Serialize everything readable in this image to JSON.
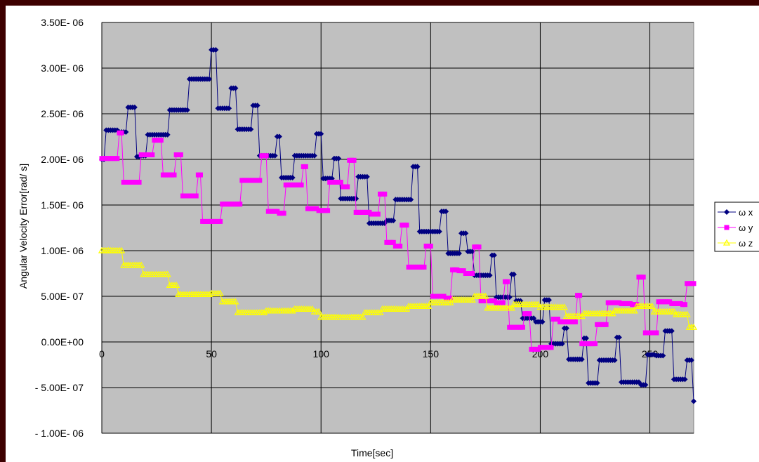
{
  "chart_data": {
    "type": "line",
    "title": "",
    "xlabel": "Time[sec]",
    "ylabel": "Angular Velocity Error[rad/ s]",
    "xlim": [
      0,
      270
    ],
    "ylim": [
      -1e-06,
      3.5e-06
    ],
    "x_ticks": [
      {
        "value": 0,
        "label": "0"
      },
      {
        "value": 50,
        "label": "50"
      },
      {
        "value": 100,
        "label": "100"
      },
      {
        "value": 150,
        "label": "150"
      },
      {
        "value": 200,
        "label": "200"
      },
      {
        "value": 250,
        "label": "250"
      }
    ],
    "y_ticks": [
      {
        "value": 3.5e-06,
        "label": "3.50E- 06"
      },
      {
        "value": 3e-06,
        "label": "3.00E- 06"
      },
      {
        "value": 2.5e-06,
        "label": "2.50E- 06"
      },
      {
        "value": 2e-06,
        "label": "2.00E- 06"
      },
      {
        "value": 1.5e-06,
        "label": "1.50E- 06"
      },
      {
        "value": 1e-06,
        "label": "1.00E- 06"
      },
      {
        "value": 5e-07,
        "label": "5.00E- 07"
      },
      {
        "value": 0,
        "label": "0.00E+00"
      },
      {
        "value": -5e-07,
        "label": "- 5.00E- 07"
      },
      {
        "value": -1e-06,
        "label": "- 1.00E- 06"
      }
    ],
    "grid": true,
    "plot_background": "#c0c0c0",
    "legend_position": "right",
    "series": [
      {
        "name": "ω x",
        "color": "#000080",
        "marker": "diamond",
        "steps": [
          [
            0,
            2e-06
          ],
          [
            2,
            2.32e-06
          ],
          [
            8,
            2.3e-06
          ],
          [
            12,
            2.57e-06
          ],
          [
            16,
            2.03e-06
          ],
          [
            18,
            2.04e-06
          ],
          [
            21,
            2.27e-06
          ],
          [
            31,
            2.54e-06
          ],
          [
            40,
            2.88e-06
          ],
          [
            50,
            3.2e-06
          ],
          [
            53,
            2.56e-06
          ],
          [
            59,
            2.78e-06
          ],
          [
            62,
            2.33e-06
          ],
          [
            69,
            2.59e-06
          ],
          [
            72,
            2.04e-06
          ],
          [
            80,
            2.25e-06
          ],
          [
            82,
            1.8e-06
          ],
          [
            88,
            2.04e-06
          ],
          [
            98,
            2.28e-06
          ],
          [
            101,
            1.79e-06
          ],
          [
            106,
            2.01e-06
          ],
          [
            109,
            1.57e-06
          ],
          [
            117,
            1.81e-06
          ],
          [
            122,
            1.3e-06
          ],
          [
            130,
            1.33e-06
          ],
          [
            134,
            1.56e-06
          ],
          [
            142,
            1.92e-06
          ],
          [
            145,
            1.21e-06
          ],
          [
            155,
            1.43e-06
          ],
          [
            158,
            9.7e-07
          ],
          [
            164,
            1.19e-06
          ],
          [
            167,
            9.9e-07
          ],
          [
            170,
            7.3e-07
          ],
          [
            178,
            9.5e-07
          ],
          [
            180,
            4.9e-07
          ],
          [
            184,
            4.9e-07
          ],
          [
            187,
            7.4e-07
          ],
          [
            189,
            4.5e-07
          ],
          [
            192,
            2.6e-07
          ],
          [
            198,
            2.2e-07
          ],
          [
            202,
            4.6e-07
          ],
          [
            205,
            -2e-08
          ],
          [
            208,
            -2e-08
          ],
          [
            211,
            1.5e-07
          ],
          [
            213,
            -1.9e-07
          ],
          [
            220,
            4e-08
          ],
          [
            222,
            -4.5e-07
          ],
          [
            227,
            -2e-07
          ],
          [
            232,
            -2e-07
          ],
          [
            235,
            5e-08
          ],
          [
            237,
            -4.4e-07
          ],
          [
            246,
            -4.7e-07
          ],
          [
            249,
            -1.4e-07
          ],
          [
            253,
            -1.5e-07
          ],
          [
            257,
            1.2e-07
          ],
          [
            261,
            -4.1e-07
          ],
          [
            267,
            -2e-07
          ],
          [
            270,
            -6.5e-07
          ]
        ]
      },
      {
        "name": "ω y",
        "color": "#ff00ff",
        "marker": "square",
        "steps": [
          [
            0,
            2.01e-06
          ],
          [
            8,
            2.29e-06
          ],
          [
            10,
            1.75e-06
          ],
          [
            18,
            2.05e-06
          ],
          [
            24,
            2.21e-06
          ],
          [
            28,
            1.83e-06
          ],
          [
            34,
            2.05e-06
          ],
          [
            37,
            1.6e-06
          ],
          [
            44,
            1.83e-06
          ],
          [
            46,
            1.32e-06
          ],
          [
            55,
            1.51e-06
          ],
          [
            64,
            1.77e-06
          ],
          [
            73,
            2.04e-06
          ],
          [
            76,
            1.43e-06
          ],
          [
            81,
            1.41e-06
          ],
          [
            84,
            1.72e-06
          ],
          [
            92,
            1.92e-06
          ],
          [
            94,
            1.46e-06
          ],
          [
            99,
            1.44e-06
          ],
          [
            104,
            1.75e-06
          ],
          [
            110,
            1.7e-06
          ],
          [
            113,
            1.99e-06
          ],
          [
            116,
            1.42e-06
          ],
          [
            123,
            1.4e-06
          ],
          [
            127,
            1.62e-06
          ],
          [
            130,
            1.09e-06
          ],
          [
            134,
            1.05e-06
          ],
          [
            137,
            1.28e-06
          ],
          [
            140,
            8.2e-07
          ],
          [
            148,
            1.05e-06
          ],
          [
            151,
            5e-07
          ],
          [
            157,
            4.8e-07
          ],
          [
            160,
            7.9e-07
          ],
          [
            163,
            7.8e-07
          ],
          [
            166,
            7.5e-07
          ],
          [
            170,
            1.04e-06
          ],
          [
            173,
            4.5e-07
          ],
          [
            180,
            4.3e-07
          ],
          [
            184,
            6.6e-07
          ],
          [
            186,
            1.6e-07
          ],
          [
            193,
            3.1e-07
          ],
          [
            196,
            -8e-08
          ],
          [
            200,
            -6e-08
          ],
          [
            206,
            2.5e-07
          ],
          [
            209,
            2.2e-07
          ],
          [
            217,
            5.1e-07
          ],
          [
            219,
            -2e-08
          ],
          [
            226,
            1.9e-07
          ],
          [
            231,
            4.3e-07
          ],
          [
            237,
            4.2e-07
          ],
          [
            242,
            4.1e-07
          ],
          [
            245,
            7.1e-07
          ],
          [
            248,
            1e-07
          ],
          [
            254,
            4.4e-07
          ],
          [
            260,
            4.2e-07
          ],
          [
            265,
            4.1e-07
          ],
          [
            267,
            6.4e-07
          ],
          [
            270,
            6.4e-07
          ]
        ]
      },
      {
        "name": "ω z",
        "color": "#ffff00",
        "marker": "triangle",
        "steps": [
          [
            0,
            1e-06
          ],
          [
            10,
            8.4e-07
          ],
          [
            19,
            7.4e-07
          ],
          [
            31,
            6.2e-07
          ],
          [
            35,
            5.2e-07
          ],
          [
            50,
            5.3e-07
          ],
          [
            55,
            4.4e-07
          ],
          [
            62,
            3.2e-07
          ],
          [
            75,
            3.4e-07
          ],
          [
            88,
            3.6e-07
          ],
          [
            97,
            3.3e-07
          ],
          [
            100,
            2.7e-07
          ],
          [
            120,
            3.2e-07
          ],
          [
            128,
            3.6e-07
          ],
          [
            140,
            3.9e-07
          ],
          [
            150,
            4.3e-07
          ],
          [
            160,
            4.6e-07
          ],
          [
            170,
            5e-07
          ],
          [
            176,
            3.7e-07
          ],
          [
            188,
            4.1e-07
          ],
          [
            200,
            3.8e-07
          ],
          [
            212,
            2.8e-07
          ],
          [
            220,
            3.1e-07
          ],
          [
            234,
            3.4e-07
          ],
          [
            244,
            3.9e-07
          ],
          [
            252,
            3.3e-07
          ],
          [
            262,
            3e-07
          ],
          [
            268,
            1.6e-07
          ],
          [
            270,
            1.6e-07
          ]
        ]
      }
    ]
  }
}
